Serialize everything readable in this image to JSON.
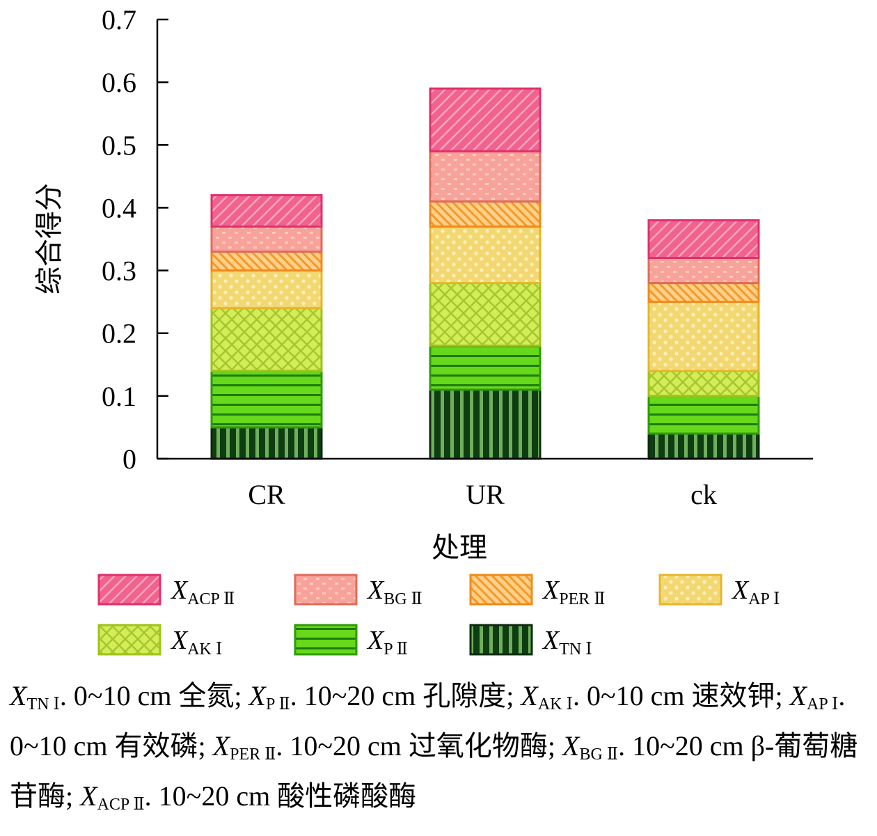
{
  "chart_data": {
    "type": "bar",
    "stacked": true,
    "categories": [
      "CR",
      "UR",
      "ck"
    ],
    "xlabel": "处理",
    "ylabel": "综合得分",
    "ylim": [
      0,
      0.7
    ],
    "yticks": [
      "0",
      "0.1",
      "0.2",
      "0.3",
      "0.4",
      "0.5",
      "0.6",
      "0.7"
    ],
    "grid": false,
    "legend_position": "bottom",
    "series": [
      {
        "name": "X",
        "sub": "TN Ⅰ",
        "values": [
          0.05,
          0.11,
          0.04
        ],
        "color": "#1d4d1d",
        "pattern": "vstripe"
      },
      {
        "name": "X",
        "sub": "P Ⅱ",
        "values": [
          0.09,
          0.07,
          0.06
        ],
        "color": "#66d91a",
        "pattern": "hstripe"
      },
      {
        "name": "X",
        "sub": "AK Ⅰ",
        "values": [
          0.1,
          0.1,
          0.04
        ],
        "color": "#d2ec5a",
        "pattern": "cross"
      },
      {
        "name": "X",
        "sub": "AP Ⅰ",
        "values": [
          0.06,
          0.09,
          0.11
        ],
        "color": "#f3d772",
        "pattern": "dots"
      },
      {
        "name": "X",
        "sub": "PER Ⅱ",
        "values": [
          0.03,
          0.04,
          0.03
        ],
        "color": "#ffb347",
        "pattern": "bdiag"
      },
      {
        "name": "X",
        "sub": "BG Ⅱ",
        "values": [
          0.04,
          0.08,
          0.04
        ],
        "color": "#f7a39a",
        "pattern": "dots2"
      },
      {
        "name": "X",
        "sub": "ACP Ⅱ",
        "values": [
          0.05,
          0.1,
          0.06
        ],
        "color": "#f2628e",
        "pattern": "fdiag"
      }
    ],
    "legend_order": [
      6,
      5,
      4,
      3,
      2,
      1,
      0
    ]
  },
  "caption": [
    {
      "x": "X",
      "sub": "TN Ⅰ",
      "text": ". 0~10 cm 全氮; "
    },
    {
      "x": "X",
      "sub": "P Ⅱ",
      "text": ". 10~20 cm 孔隙度; "
    },
    {
      "x": "X",
      "sub": "AK Ⅰ",
      "text": ". 0~10 cm 速效钾; "
    },
    {
      "x": "X",
      "sub": "AP Ⅰ",
      "text": ". 0~10 cm 有效磷; "
    },
    {
      "x": "X",
      "sub": "PER Ⅱ",
      "text": ". 10~20 cm 过氧化物酶; "
    },
    {
      "x": "X",
      "sub": "BG Ⅱ",
      "text": ". 10~20 cm β-葡萄糖苷酶; "
    },
    {
      "x": "X",
      "sub": "ACP Ⅱ",
      "text": ". 10~20 cm 酸性磷酸酶"
    }
  ]
}
